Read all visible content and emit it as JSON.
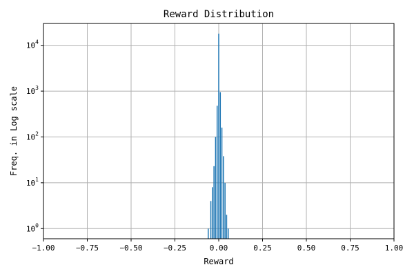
{
  "chart_data": {
    "type": "bar",
    "title": "Reward Distribution",
    "xlabel": "Reward",
    "ylabel": "Freq. in Log scale",
    "yscale": "log",
    "xlim": [
      -1.0,
      1.0
    ],
    "ylim": [
      0.6,
      30000
    ],
    "grid": true,
    "bar_color": "#1f77b4",
    "x_ticks": [
      {
        "value": -1.0,
        "label": "−1.00"
      },
      {
        "value": -0.75,
        "label": "−0.75"
      },
      {
        "value": -0.5,
        "label": "−0.50"
      },
      {
        "value": -0.25,
        "label": "−0.25"
      },
      {
        "value": 0.0,
        "label": "0.00"
      },
      {
        "value": 0.25,
        "label": "0.25"
      },
      {
        "value": 0.5,
        "label": "0.50"
      },
      {
        "value": 0.75,
        "label": "0.75"
      },
      {
        "value": 1.0,
        "label": "1.00"
      }
    ],
    "y_ticks": [
      {
        "value": 1,
        "base": "10",
        "exp": "0"
      },
      {
        "value": 10,
        "base": "10",
        "exp": "1"
      },
      {
        "value": 100,
        "base": "10",
        "exp": "2"
      },
      {
        "value": 1000,
        "base": "10",
        "exp": "3"
      },
      {
        "value": 10000,
        "base": "10",
        "exp": "4"
      }
    ],
    "bin_width": 0.006,
    "bins": [
      {
        "x": -0.06,
        "freq": 1
      },
      {
        "x": -0.045,
        "freq": 4
      },
      {
        "x": -0.036,
        "freq": 8
      },
      {
        "x": -0.027,
        "freq": 23
      },
      {
        "x": -0.018,
        "freq": 100
      },
      {
        "x": -0.009,
        "freq": 480
      },
      {
        "x": 0.0,
        "freq": 18000
      },
      {
        "x": 0.009,
        "freq": 950
      },
      {
        "x": 0.018,
        "freq": 160
      },
      {
        "x": 0.027,
        "freq": 38
      },
      {
        "x": 0.036,
        "freq": 10
      },
      {
        "x": 0.045,
        "freq": 2
      },
      {
        "x": 0.054,
        "freq": 1
      }
    ]
  }
}
